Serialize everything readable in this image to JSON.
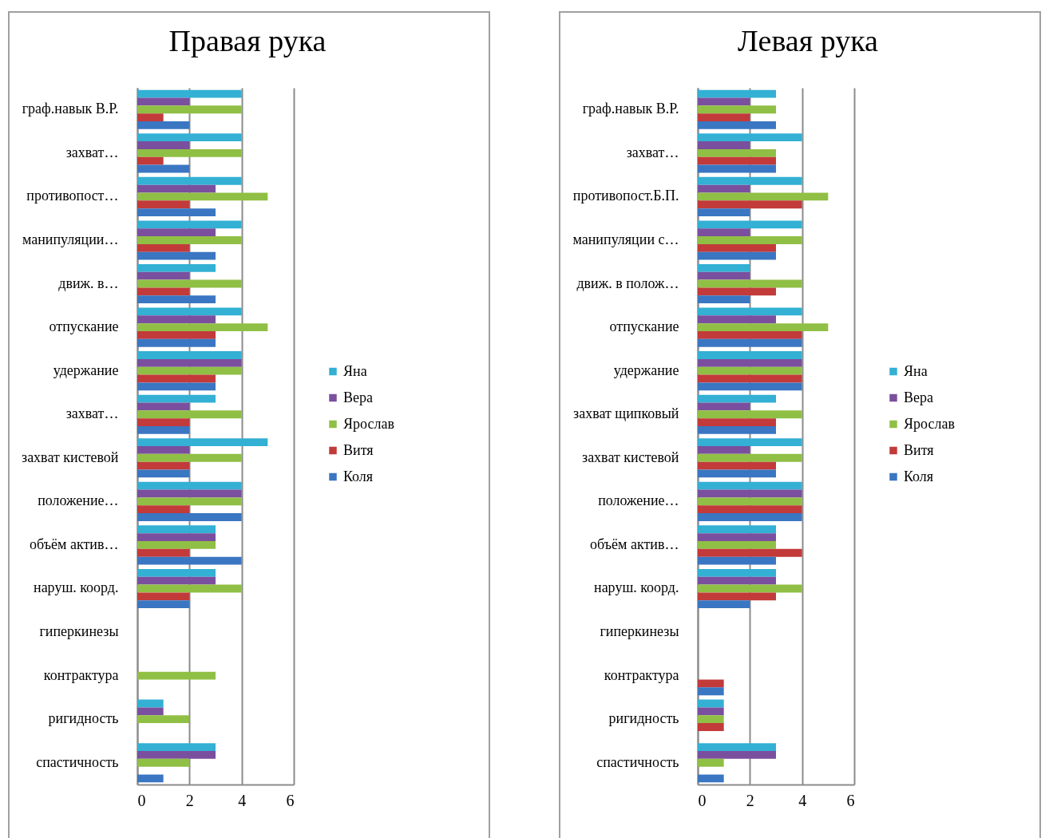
{
  "chart_data": [
    {
      "type": "bar",
      "orientation": "horizontal",
      "title": "Правая рука",
      "categories": [
        "граф.навык В.Р.",
        "захват…",
        "противопост…",
        "манипуляции…",
        "движ. в…",
        "отпускание",
        "удержание",
        "захват…",
        "захват кистевой",
        "положение…",
        "объём актив…",
        "наруш. коорд.",
        "гиперкинезы",
        "контрактура",
        "ригидность",
        "спастичность"
      ],
      "series": [
        {
          "name": "Яна",
          "color": "#33b0d4",
          "values": [
            4,
            4,
            4,
            4,
            3,
            4,
            4,
            3,
            5,
            4,
            3,
            3,
            null,
            null,
            1,
            3
          ]
        },
        {
          "name": "Вера",
          "color": "#7a4f9e",
          "values": [
            2,
            2,
            3,
            3,
            2,
            3,
            4,
            2,
            2,
            4,
            3,
            3,
            null,
            null,
            1,
            3
          ]
        },
        {
          "name": "Ярослав",
          "color": "#90bf45",
          "values": [
            4,
            4,
            5,
            4,
            4,
            5,
            4,
            4,
            4,
            4,
            3,
            4,
            null,
            3,
            2,
            2
          ]
        },
        {
          "name": "Витя",
          "color": "#c23a3a",
          "values": [
            1,
            1,
            2,
            2,
            2,
            3,
            3,
            2,
            2,
            2,
            2,
            2,
            null,
            null,
            null,
            null
          ]
        },
        {
          "name": "Коля",
          "color": "#3a76c2",
          "values": [
            2,
            2,
            3,
            3,
            3,
            3,
            3,
            2,
            2,
            4,
            4,
            2,
            null,
            null,
            null,
            1
          ]
        }
      ],
      "xlim": [
        0,
        6
      ],
      "xticks": [
        0,
        2,
        4,
        6
      ],
      "grid": "x",
      "legend": "right"
    },
    {
      "type": "bar",
      "orientation": "horizontal",
      "title": "Левая рука",
      "categories": [
        "граф.навык В.Р.",
        "захват…",
        "противопост.Б.П.",
        "манипуляции с…",
        "движ. в полож…",
        "отпускание",
        "удержание",
        "захват щипковый",
        "захват кистевой",
        "положение…",
        "объём актив…",
        "наруш. коорд.",
        "гиперкинезы",
        "контрактура",
        "ригидность",
        "спастичность"
      ],
      "series": [
        {
          "name": "Яна",
          "color": "#33b0d4",
          "values": [
            3,
            4,
            4,
            4,
            2,
            4,
            4,
            3,
            4,
            4,
            3,
            3,
            null,
            null,
            1,
            3
          ]
        },
        {
          "name": "Вера",
          "color": "#7a4f9e",
          "values": [
            2,
            2,
            2,
            2,
            2,
            3,
            4,
            2,
            2,
            4,
            3,
            3,
            null,
            null,
            1,
            3
          ]
        },
        {
          "name": "Ярослав",
          "color": "#90bf45",
          "values": [
            3,
            3,
            5,
            4,
            4,
            5,
            4,
            4,
            4,
            4,
            3,
            4,
            null,
            null,
            1,
            1
          ]
        },
        {
          "name": "Витя",
          "color": "#c23a3a",
          "values": [
            2,
            3,
            4,
            3,
            3,
            4,
            4,
            3,
            3,
            4,
            4,
            3,
            null,
            1,
            1,
            null
          ]
        },
        {
          "name": "Коля",
          "color": "#3a76c2",
          "values": [
            3,
            3,
            2,
            3,
            2,
            4,
            4,
            3,
            3,
            4,
            3,
            2,
            null,
            1,
            null,
            1
          ]
        }
      ],
      "xlim": [
        0,
        6
      ],
      "xticks": [
        0,
        2,
        4,
        6
      ],
      "grid": "x",
      "legend": "right"
    }
  ]
}
